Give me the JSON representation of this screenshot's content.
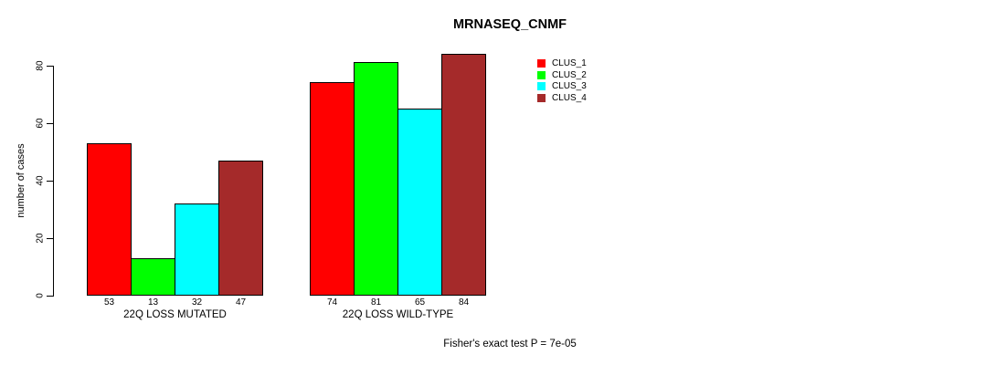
{
  "chart_data": {
    "type": "bar",
    "title": "MRNASEQ_CNMF",
    "ylabel": "number of cases",
    "xlabel": "",
    "ylim": [
      0,
      84
    ],
    "yticks": [
      0,
      20,
      40,
      60,
      80
    ],
    "grid": false,
    "legend_position": "top-right",
    "bar_value_labels": true,
    "categories": [
      "22Q LOSS MUTATED",
      "22Q LOSS WILD-TYPE"
    ],
    "series": [
      {
        "name": "CLUS_1",
        "color": "#ff0000",
        "values": [
          53,
          74
        ]
      },
      {
        "name": "CLUS_2",
        "color": "#00ff00",
        "values": [
          13,
          81
        ]
      },
      {
        "name": "CLUS_3",
        "color": "#00ffff",
        "values": [
          32,
          65
        ]
      },
      {
        "name": "CLUS_4",
        "color": "#a52a2a",
        "values": [
          47,
          84
        ]
      }
    ],
    "annotation": "Fisher's exact test P = 7e-05"
  }
}
